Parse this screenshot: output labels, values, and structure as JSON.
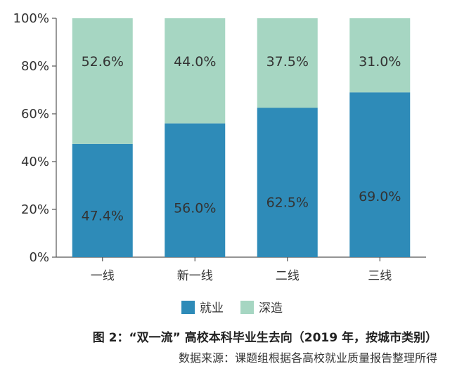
{
  "chart_data": {
    "type": "bar",
    "stacked": true,
    "categories": [
      "一线",
      "新一线",
      "二线",
      "三线"
    ],
    "series": [
      {
        "name": "就业",
        "values": [
          47.4,
          56.0,
          62.5,
          69.0
        ],
        "labels": [
          "47.4%",
          "56.0%",
          "62.5%",
          "69.0%"
        ],
        "color": "#2e8bb8"
      },
      {
        "name": "深造",
        "values": [
          52.6,
          44.0,
          37.5,
          31.0
        ],
        "labels": [
          "52.6%",
          "44.0%",
          "37.5%",
          "31.0%"
        ],
        "color": "#a6d6c2"
      }
    ],
    "ylim": [
      0,
      100
    ],
    "yticks": [
      0,
      20,
      40,
      60,
      80,
      100
    ],
    "ytick_labels": [
      "0%",
      "20%",
      "40%",
      "60%",
      "80%",
      "100%"
    ],
    "grid": false,
    "legend_position": "bottom"
  },
  "caption": "图 2：“双一流” 高校本科毕业生去向（2019 年，按城市类别）",
  "source": "数据来源：课题组根据各高校就业质量报告整理所得"
}
